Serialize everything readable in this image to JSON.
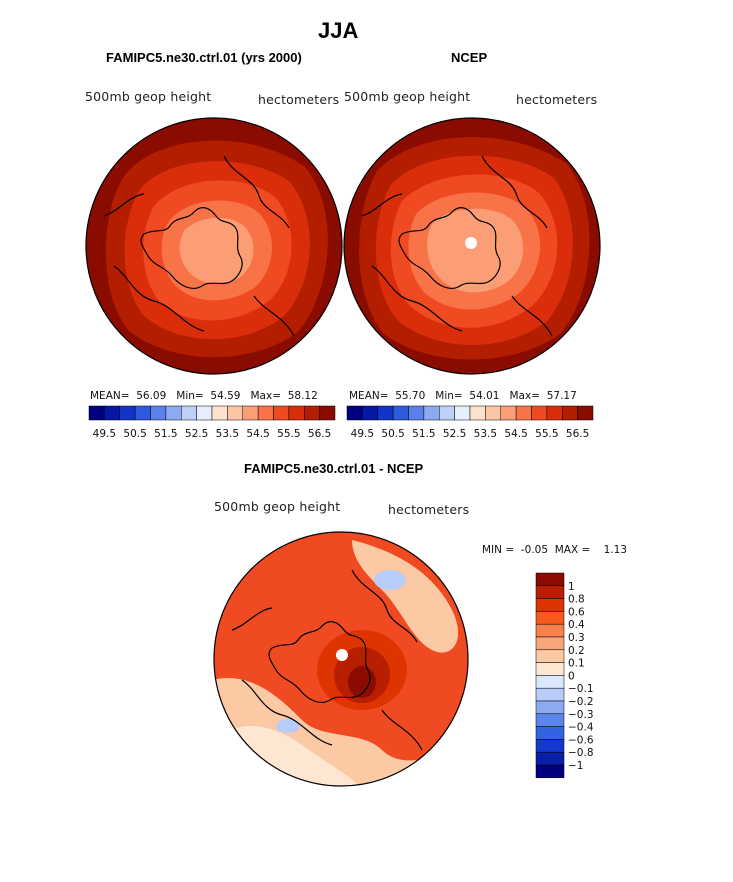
{
  "title": "JJA",
  "panels": [
    {
      "title": "FAMIPC5.ne30.ctrl.01 (yrs 2000)",
      "variable": "500mb geop height",
      "units": "hectometers",
      "stats": {
        "mean_label": "MEAN=",
        "mean": "56.09",
        "min_label": "Min=",
        "min": "54.59",
        "max_label": "Max=",
        "max": "58.12"
      }
    },
    {
      "title": "NCEP",
      "variable": "500mb geop height",
      "units": "hectometers",
      "stats": {
        "mean_label": "MEAN=",
        "mean": "55.70",
        "min_label": "Min=",
        "min": "54.01",
        "max_label": "Max=",
        "max": "57.17"
      }
    }
  ],
  "colorbar_ticks": [
    "49.5",
    "50.5",
    "51.5",
    "52.5",
    "53.5",
    "54.5",
    "55.5",
    "56.5"
  ],
  "colorbar_colors": [
    "#000080",
    "#0518a8",
    "#1234c8",
    "#2e5ae0",
    "#5a80ec",
    "#8caaf2",
    "#bcd0f8",
    "#e6eefc",
    "#fde3cf",
    "#fcc6a4",
    "#fb9e76",
    "#f87448",
    "#f04a22",
    "#da2e0a",
    "#b31d00",
    "#8a0b00"
  ],
  "diff": {
    "title": "FAMIPC5.ne30.ctrl.01 - NCEP",
    "variable": "500mb geop height",
    "units": "hectometers",
    "min_label": "MIN =",
    "min": "-0.05",
    "max_label": "MAX =",
    "max": "1.13",
    "legend": {
      "labels": [
        "1",
        "0.8",
        "0.6",
        "0.4",
        "0.3",
        "0.2",
        "0.1",
        "0",
        "−0.1",
        "−0.2",
        "−0.3",
        "−0.4",
        "−0.6",
        "−0.8",
        "−1"
      ],
      "colors": [
        "#8b0b00",
        "#b81e00",
        "#dd3400",
        "#f65a1c",
        "#f8804a",
        "#f9a57a",
        "#fbc9a4",
        "#fde6d2",
        "#dbe8fb",
        "#b7ccf8",
        "#8aaaf1",
        "#5d84ea",
        "#3362e2",
        "#1338cd",
        "#081fa8",
        "#000080"
      ]
    }
  },
  "colors": {
    "pole_marker": "#ffffff",
    "coastline": "#000000",
    "map_outline": "#000000"
  }
}
